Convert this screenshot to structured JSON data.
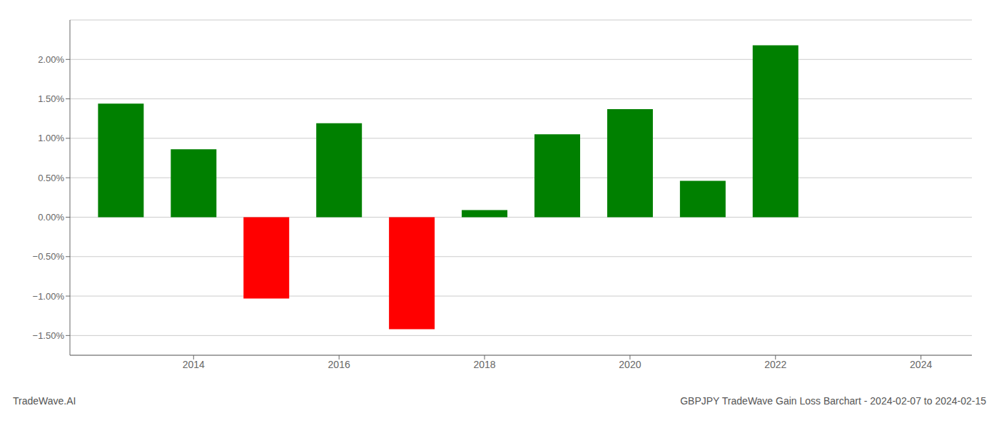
{
  "chart_data": {
    "type": "bar",
    "x": [
      2013,
      2014,
      2015,
      2016,
      2017,
      2018,
      2019,
      2020,
      2021,
      2022
    ],
    "values": [
      1.44,
      0.86,
      -1.03,
      1.19,
      -1.42,
      0.09,
      1.05,
      1.37,
      0.46,
      2.18
    ],
    "colors": [
      "#008000",
      "#008000",
      "#ff0000",
      "#008000",
      "#ff0000",
      "#008000",
      "#008000",
      "#008000",
      "#008000",
      "#008000"
    ],
    "xlim": [
      2012.3,
      2024.7
    ],
    "xticks": [
      2014,
      2016,
      2018,
      2020,
      2022,
      2024
    ],
    "ylim": [
      -1.75,
      2.5
    ],
    "yticks": [
      {
        "value": -1.5,
        "label": "−1.50%"
      },
      {
        "value": -1.0,
        "label": "−1.00%"
      },
      {
        "value": -0.5,
        "label": "−0.50%"
      },
      {
        "value": 0.0,
        "label": "0.00%"
      },
      {
        "value": 0.5,
        "label": "0.50%"
      },
      {
        "value": 1.0,
        "label": "1.00%"
      },
      {
        "value": 1.5,
        "label": "1.50%"
      },
      {
        "value": 2.0,
        "label": "2.00%"
      }
    ],
    "grid": "y",
    "annotations": [
      "TradeWave.AI",
      "GBPJPY TradeWave Gain Loss Barchart - 2024-02-07 to 2024-02-15"
    ]
  }
}
